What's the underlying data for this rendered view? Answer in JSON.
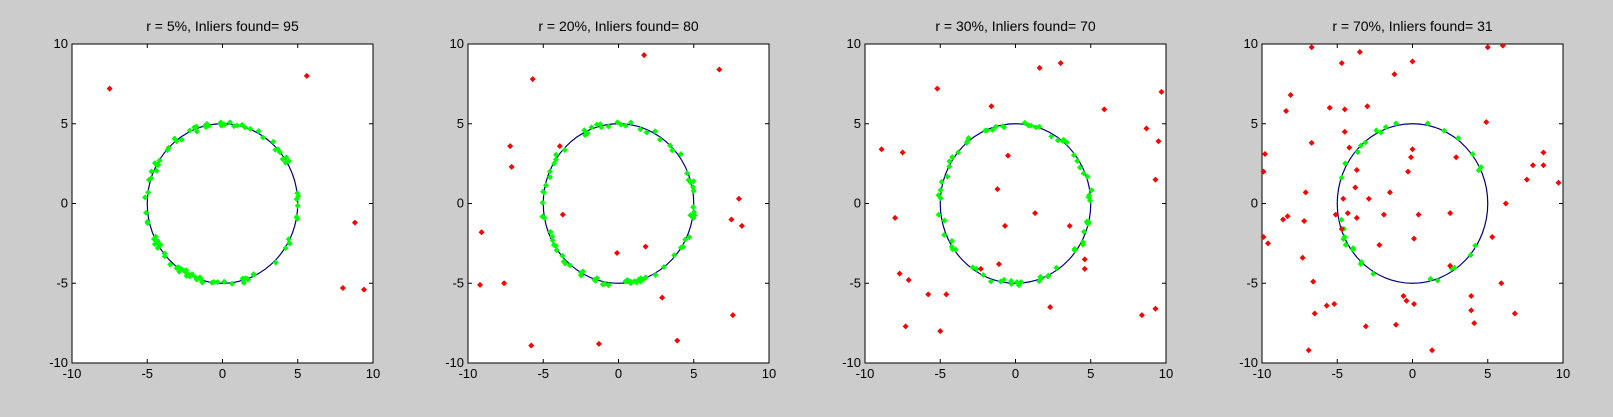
{
  "chart_data": [
    {
      "type": "scatter",
      "title": "r = 5%, Inliers found= 95",
      "xlim": [
        -10,
        10
      ],
      "ylim": [
        -10,
        10
      ],
      "xticks": [
        -10,
        -5,
        0,
        5,
        10
      ],
      "yticks": [
        -10,
        -5,
        0,
        5,
        10
      ],
      "grid": false,
      "circle": {
        "cx": 0,
        "cy": 0,
        "r": 5,
        "color": "#000080"
      },
      "inlier_count": 95,
      "inlier_color": "#00ff00",
      "outlier_color": "#ff0000",
      "outliers": [
        [
          -7.5,
          7.2
        ],
        [
          5.6,
          8.0
        ],
        [
          8.8,
          -1.2
        ],
        [
          8.0,
          -5.3
        ],
        [
          9.4,
          -5.4
        ]
      ]
    },
    {
      "type": "scatter",
      "title": "r = 20%, Inliers found= 80",
      "xlim": [
        -10,
        10
      ],
      "ylim": [
        -10,
        10
      ],
      "xticks": [
        -10,
        -5,
        0,
        5,
        10
      ],
      "yticks": [
        -10,
        -5,
        0,
        5,
        10
      ],
      "grid": false,
      "circle": {
        "cx": 0,
        "cy": 0,
        "r": 5,
        "color": "#000080"
      },
      "inlier_count": 80,
      "inlier_color": "#00ff00",
      "outlier_color": "#ff0000",
      "outliers": [
        [
          -5.7,
          7.8
        ],
        [
          1.7,
          9.3
        ],
        [
          6.7,
          8.4
        ],
        [
          -7.2,
          3.6
        ],
        [
          -7.1,
          2.3
        ],
        [
          -3.9,
          3.6
        ],
        [
          -3.7,
          -0.7
        ],
        [
          -0.1,
          -3.1
        ],
        [
          1.8,
          -2.7
        ],
        [
          7.5,
          -1.0
        ],
        [
          8.0,
          0.3
        ],
        [
          8.2,
          -1.4
        ],
        [
          -9.1,
          -1.8
        ],
        [
          -9.2,
          -5.1
        ],
        [
          -7.6,
          -5.0
        ],
        [
          2.9,
          -5.9
        ],
        [
          7.6,
          -7.0
        ],
        [
          -5.8,
          -8.9
        ],
        [
          -1.3,
          -8.8
        ],
        [
          3.9,
          -8.6
        ]
      ]
    },
    {
      "type": "scatter",
      "title": "r = 30%, Inliers found= 70",
      "xlim": [
        -10,
        10
      ],
      "ylim": [
        -10,
        10
      ],
      "xticks": [
        -10,
        -5,
        0,
        5,
        10
      ],
      "yticks": [
        -10,
        -5,
        0,
        5,
        10
      ],
      "grid": false,
      "circle": {
        "cx": 0,
        "cy": 0,
        "r": 5,
        "color": "#000080"
      },
      "inlier_count": 70,
      "inlier_color": "#00ff00",
      "outlier_color": "#ff0000",
      "outliers": [
        [
          -5.2,
          7.2
        ],
        [
          1.6,
          8.5
        ],
        [
          3.0,
          8.8
        ],
        [
          -1.6,
          6.1
        ],
        [
          5.9,
          5.9
        ],
        [
          9.7,
          7.0
        ],
        [
          -8.9,
          3.4
        ],
        [
          -7.5,
          3.2
        ],
        [
          -0.5,
          3.0
        ],
        [
          8.7,
          4.7
        ],
        [
          9.5,
          3.9
        ],
        [
          -1.2,
          0.9
        ],
        [
          9.3,
          1.5
        ],
        [
          -8.0,
          -0.9
        ],
        [
          1.3,
          -0.6
        ],
        [
          -0.7,
          -1.4
        ],
        [
          3.6,
          -1.4
        ],
        [
          -7.7,
          -4.4
        ],
        [
          -7.1,
          -4.8
        ],
        [
          -5.8,
          -5.7
        ],
        [
          -4.6,
          -5.7
        ],
        [
          -2.3,
          -4.1
        ],
        [
          -1.1,
          -3.8
        ],
        [
          4.6,
          -3.5
        ],
        [
          4.6,
          -4.1
        ],
        [
          2.3,
          -6.5
        ],
        [
          -7.3,
          -7.7
        ],
        [
          -5.0,
          -8.0
        ],
        [
          8.4,
          -7.0
        ],
        [
          9.3,
          -6.6
        ]
      ]
    },
    {
      "type": "scatter",
      "title": "r = 70%, Inliers found= 31",
      "xlim": [
        -10,
        10
      ],
      "ylim": [
        -10,
        10
      ],
      "xticks": [
        -10,
        -5,
        0,
        5,
        10
      ],
      "yticks": [
        -10,
        -5,
        0,
        5,
        10
      ],
      "grid": false,
      "circle": {
        "cx": 0,
        "cy": 0,
        "r": 5,
        "color": "#000080"
      },
      "inlier_count": 31,
      "inlier_color": "#00ff00",
      "outlier_color": "#ff0000",
      "outliers": [
        [
          -6.7,
          9.8
        ],
        [
          -3.5,
          9.5
        ],
        [
          0.0,
          8.9
        ],
        [
          5.0,
          9.8
        ],
        [
          6.0,
          9.9
        ],
        [
          -4.7,
          8.8
        ],
        [
          -1.2,
          8.1
        ],
        [
          -8.1,
          6.8
        ],
        [
          -5.5,
          6.0
        ],
        [
          -4.5,
          5.9
        ],
        [
          -3.0,
          6.1
        ],
        [
          -8.4,
          5.8
        ],
        [
          -4.5,
          4.5
        ],
        [
          4.9,
          5.1
        ],
        [
          -4.2,
          3.5
        ],
        [
          -6.7,
          3.8
        ],
        [
          0.0,
          3.4
        ],
        [
          -9.8,
          3.1
        ],
        [
          -0.1,
          2.9
        ],
        [
          2.9,
          2.9
        ],
        [
          -3.7,
          2.1
        ],
        [
          -0.3,
          2.0
        ],
        [
          -9.9,
          2.0
        ],
        [
          -3.8,
          1.0
        ],
        [
          8.7,
          3.2
        ],
        [
          8.0,
          2.4
        ],
        [
          8.7,
          2.4
        ],
        [
          7.6,
          1.5
        ],
        [
          9.7,
          1.3
        ],
        [
          6.2,
          0.0
        ],
        [
          -7.1,
          0.7
        ],
        [
          -4.6,
          0.3
        ],
        [
          -2.9,
          0.3
        ],
        [
          -1.5,
          0.7
        ],
        [
          -8.3,
          -0.8
        ],
        [
          -8.6,
          -1.0
        ],
        [
          -7.2,
          -1.1
        ],
        [
          -5.1,
          -0.7
        ],
        [
          -4.3,
          -0.6
        ],
        [
          -3.7,
          -0.9
        ],
        [
          -1.9,
          -0.7
        ],
        [
          0.4,
          -0.7
        ],
        [
          2.5,
          -0.6
        ],
        [
          -9.9,
          -2.1
        ],
        [
          -9.6,
          -2.5
        ],
        [
          -4.7,
          -1.6
        ],
        [
          -2.2,
          -2.6
        ],
        [
          0.1,
          -2.2
        ],
        [
          5.3,
          -2.1
        ],
        [
          -7.3,
          -3.4
        ],
        [
          -6.6,
          -4.9
        ],
        [
          -5.7,
          -6.4
        ],
        [
          -5.2,
          -6.3
        ],
        [
          -6.5,
          -6.9
        ],
        [
          -0.6,
          -5.8
        ],
        [
          0.1,
          -6.3
        ],
        [
          -0.4,
          -6.1
        ],
        [
          2.5,
          -3.9
        ],
        [
          3.9,
          -5.8
        ],
        [
          3.9,
          -6.7
        ],
        [
          4.1,
          -7.5
        ],
        [
          5.9,
          -5.0
        ],
        [
          6.8,
          -6.9
        ],
        [
          -3.1,
          -7.7
        ],
        [
          -1.1,
          -7.6
        ],
        [
          -6.9,
          -9.2
        ],
        [
          1.3,
          -9.2
        ]
      ]
    }
  ]
}
